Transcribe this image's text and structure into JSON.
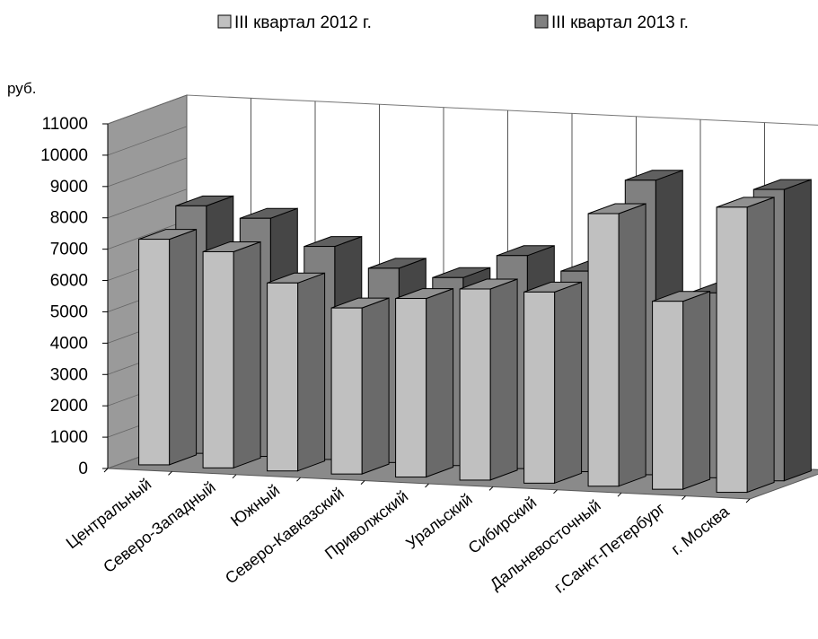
{
  "chart_data": {
    "type": "bar",
    "ylabel": "руб.",
    "ylim": [
      0,
      11000
    ],
    "yticks": [
      0,
      1000,
      2000,
      3000,
      4000,
      5000,
      6000,
      7000,
      8000,
      9000,
      10000,
      11000
    ],
    "categories": [
      "Центральный",
      "Северо-Западный",
      "Южный",
      "Северо-Кавказский",
      "Приволжский",
      "Уральский",
      "Сибирский",
      "Дальневосточный",
      "г.Санкт-Петербург",
      "г. Москва"
    ],
    "series": [
      {
        "name": "III квартал 2012 г.",
        "color": "#c0c0c0",
        "values": [
          7200,
          6900,
          6000,
          5300,
          5700,
          6100,
          6100,
          8700,
          6000,
          9100
        ]
      },
      {
        "name": "III квартал 2013 г.",
        "color": "#808080",
        "values": [
          7900,
          7600,
          6800,
          6200,
          6000,
          6800,
          6400,
          9400,
          5900,
          9300
        ]
      }
    ],
    "legend_position": "top",
    "grid": true,
    "style": "3d-clustered"
  }
}
